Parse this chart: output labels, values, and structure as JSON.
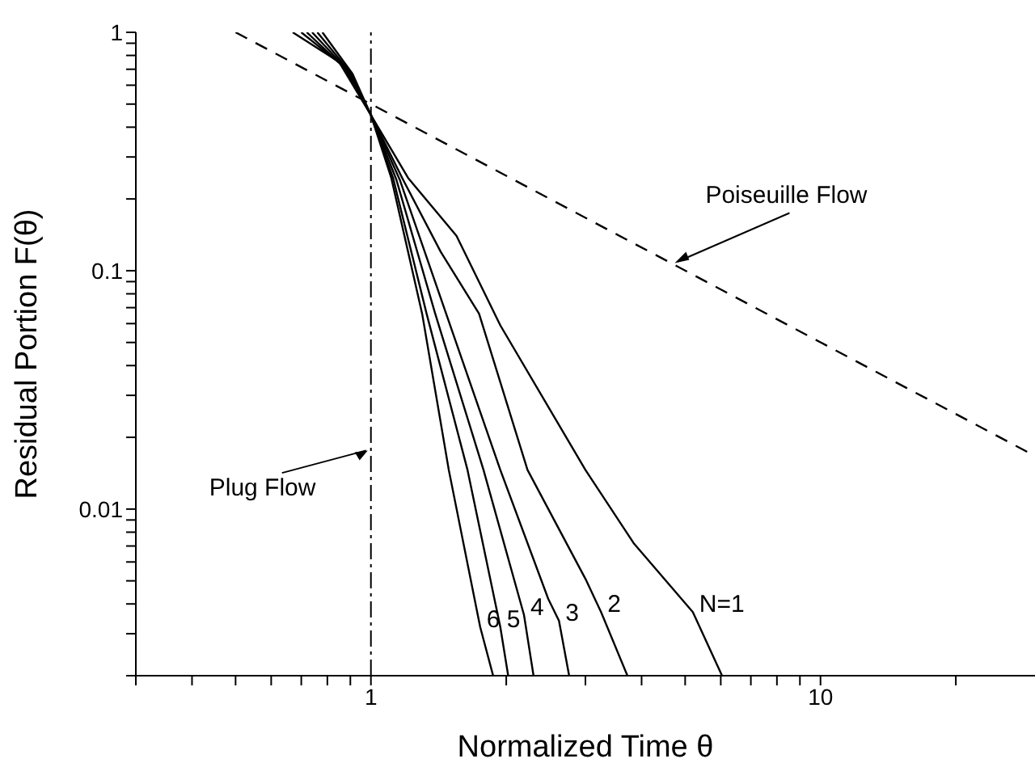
{
  "chart_data": {
    "type": "line",
    "xlabel": "Normalized Time θ",
    "ylabel": "Residual Portion F(θ)",
    "log": "xy",
    "xlim": [
      0.3,
      30
    ],
    "ylim": [
      0.002,
      1
    ],
    "xticks": [
      {
        "value": 0.3,
        "label": null
      },
      {
        "value": 0.4,
        "label": null
      },
      {
        "value": 0.5,
        "label": null
      },
      {
        "value": 0.6,
        "label": null
      },
      {
        "value": 0.7,
        "label": null
      },
      {
        "value": 0.8,
        "label": null
      },
      {
        "value": 0.9,
        "label": null
      },
      1,
      {
        "value": 2,
        "label": null
      },
      {
        "value": 3,
        "label": null
      },
      {
        "value": 4,
        "label": null
      },
      {
        "value": 5,
        "label": null
      },
      {
        "value": 6,
        "label": null
      },
      {
        "value": 7,
        "label": null
      },
      {
        "value": 8,
        "label": null
      },
      {
        "value": 9,
        "label": null
      },
      10,
      {
        "value": 20,
        "label": null
      }
    ],
    "yticks": [
      {
        "value": 0.002,
        "label": null
      },
      {
        "value": 0.003,
        "label": null
      },
      {
        "value": 0.004,
        "label": null
      },
      {
        "value": 0.005,
        "label": null
      },
      {
        "value": 0.006,
        "label": null
      },
      {
        "value": 0.007,
        "label": null
      },
      {
        "value": 0.008,
        "label": null
      },
      {
        "value": 0.009,
        "label": null
      },
      0.01,
      {
        "value": 0.02,
        "label": null
      },
      {
        "value": 0.03,
        "label": null
      },
      {
        "value": 0.04,
        "label": null
      },
      {
        "value": 0.05,
        "label": null
      },
      {
        "value": 0.06,
        "label": null
      },
      {
        "value": 0.07,
        "label": null
      },
      {
        "value": 0.08,
        "label": null
      },
      {
        "value": 0.09,
        "label": null
      },
      0.1,
      {
        "value": 0.2,
        "label": null
      },
      {
        "value": 0.3,
        "label": null
      },
      {
        "value": 0.4,
        "label": null
      },
      {
        "value": 0.5,
        "label": null
      },
      {
        "value": 0.6,
        "label": null
      },
      {
        "value": 0.7,
        "label": null
      },
      {
        "value": 0.8,
        "label": null
      },
      {
        "value": 0.9,
        "label": null
      },
      1
    ],
    "marker": "none",
    "series": [
      {
        "name": "N=1",
        "color": "#000000",
        "x": [
          0.67,
          0.85,
          1,
          1.21,
          1.55,
          1.94,
          3.0,
          3.84,
          5.2,
          6.04
        ],
        "values": [
          1,
          0.75,
          0.45,
          0.245,
          0.14,
          0.059,
          0.0146,
          0.0072,
          0.0037,
          0.002
        ]
      },
      {
        "name": "2",
        "color": "#000000",
        "x": [
          0.7,
          0.87,
          1,
          1.18,
          1.43,
          1.74,
          2.23,
          3.0,
          3.25,
          3.72
        ],
        "values": [
          1,
          0.72,
          0.45,
          0.24,
          0.12,
          0.066,
          0.0146,
          0.0051,
          0.0037,
          0.002
        ]
      },
      {
        "name": "3",
        "color": "#000000",
        "x": [
          0.72,
          0.88,
          1,
          1.16,
          1.47,
          1.94,
          2.48,
          2.62,
          2.76
        ],
        "values": [
          1,
          0.7,
          0.45,
          0.24,
          0.066,
          0.0146,
          0.0042,
          0.0034,
          0.002
        ]
      },
      {
        "name": "4",
        "color": "#000000",
        "x": [
          0.74,
          0.89,
          1,
          1.14,
          1.39,
          1.78,
          2.19,
          2.3
        ],
        "values": [
          1,
          0.69,
          0.45,
          0.24,
          0.066,
          0.0146,
          0.0036,
          0.002
        ]
      },
      {
        "name": "5",
        "color": "#000000",
        "x": [
          0.76,
          0.9,
          1,
          1.12,
          1.33,
          1.64,
          1.94,
          2.02
        ],
        "values": [
          1,
          0.68,
          0.45,
          0.245,
          0.066,
          0.0146,
          0.0032,
          0.002
        ]
      },
      {
        "name": "6",
        "color": "#000000",
        "x": [
          0.78,
          0.91,
          1,
          1.11,
          1.3,
          1.49,
          1.75,
          1.87
        ],
        "values": [
          1,
          0.67,
          0.45,
          0.245,
          0.066,
          0.0146,
          0.0032,
          0.002
        ]
      },
      {
        "color": "#000000",
        "line_style": "dashed",
        "x": [
          0.5,
          30
        ],
        "values": [
          1,
          0.0167
        ]
      }
    ],
    "ref_lines": [
      {
        "axis": "x",
        "value": 1,
        "label": "Plug Flow",
        "line_style": "dashed",
        "color": "#000000"
      }
    ],
    "annotations": [
      {
        "text": "Poiseuille Flow",
        "x": 4.7,
        "y": 0.106
      }
    ]
  }
}
